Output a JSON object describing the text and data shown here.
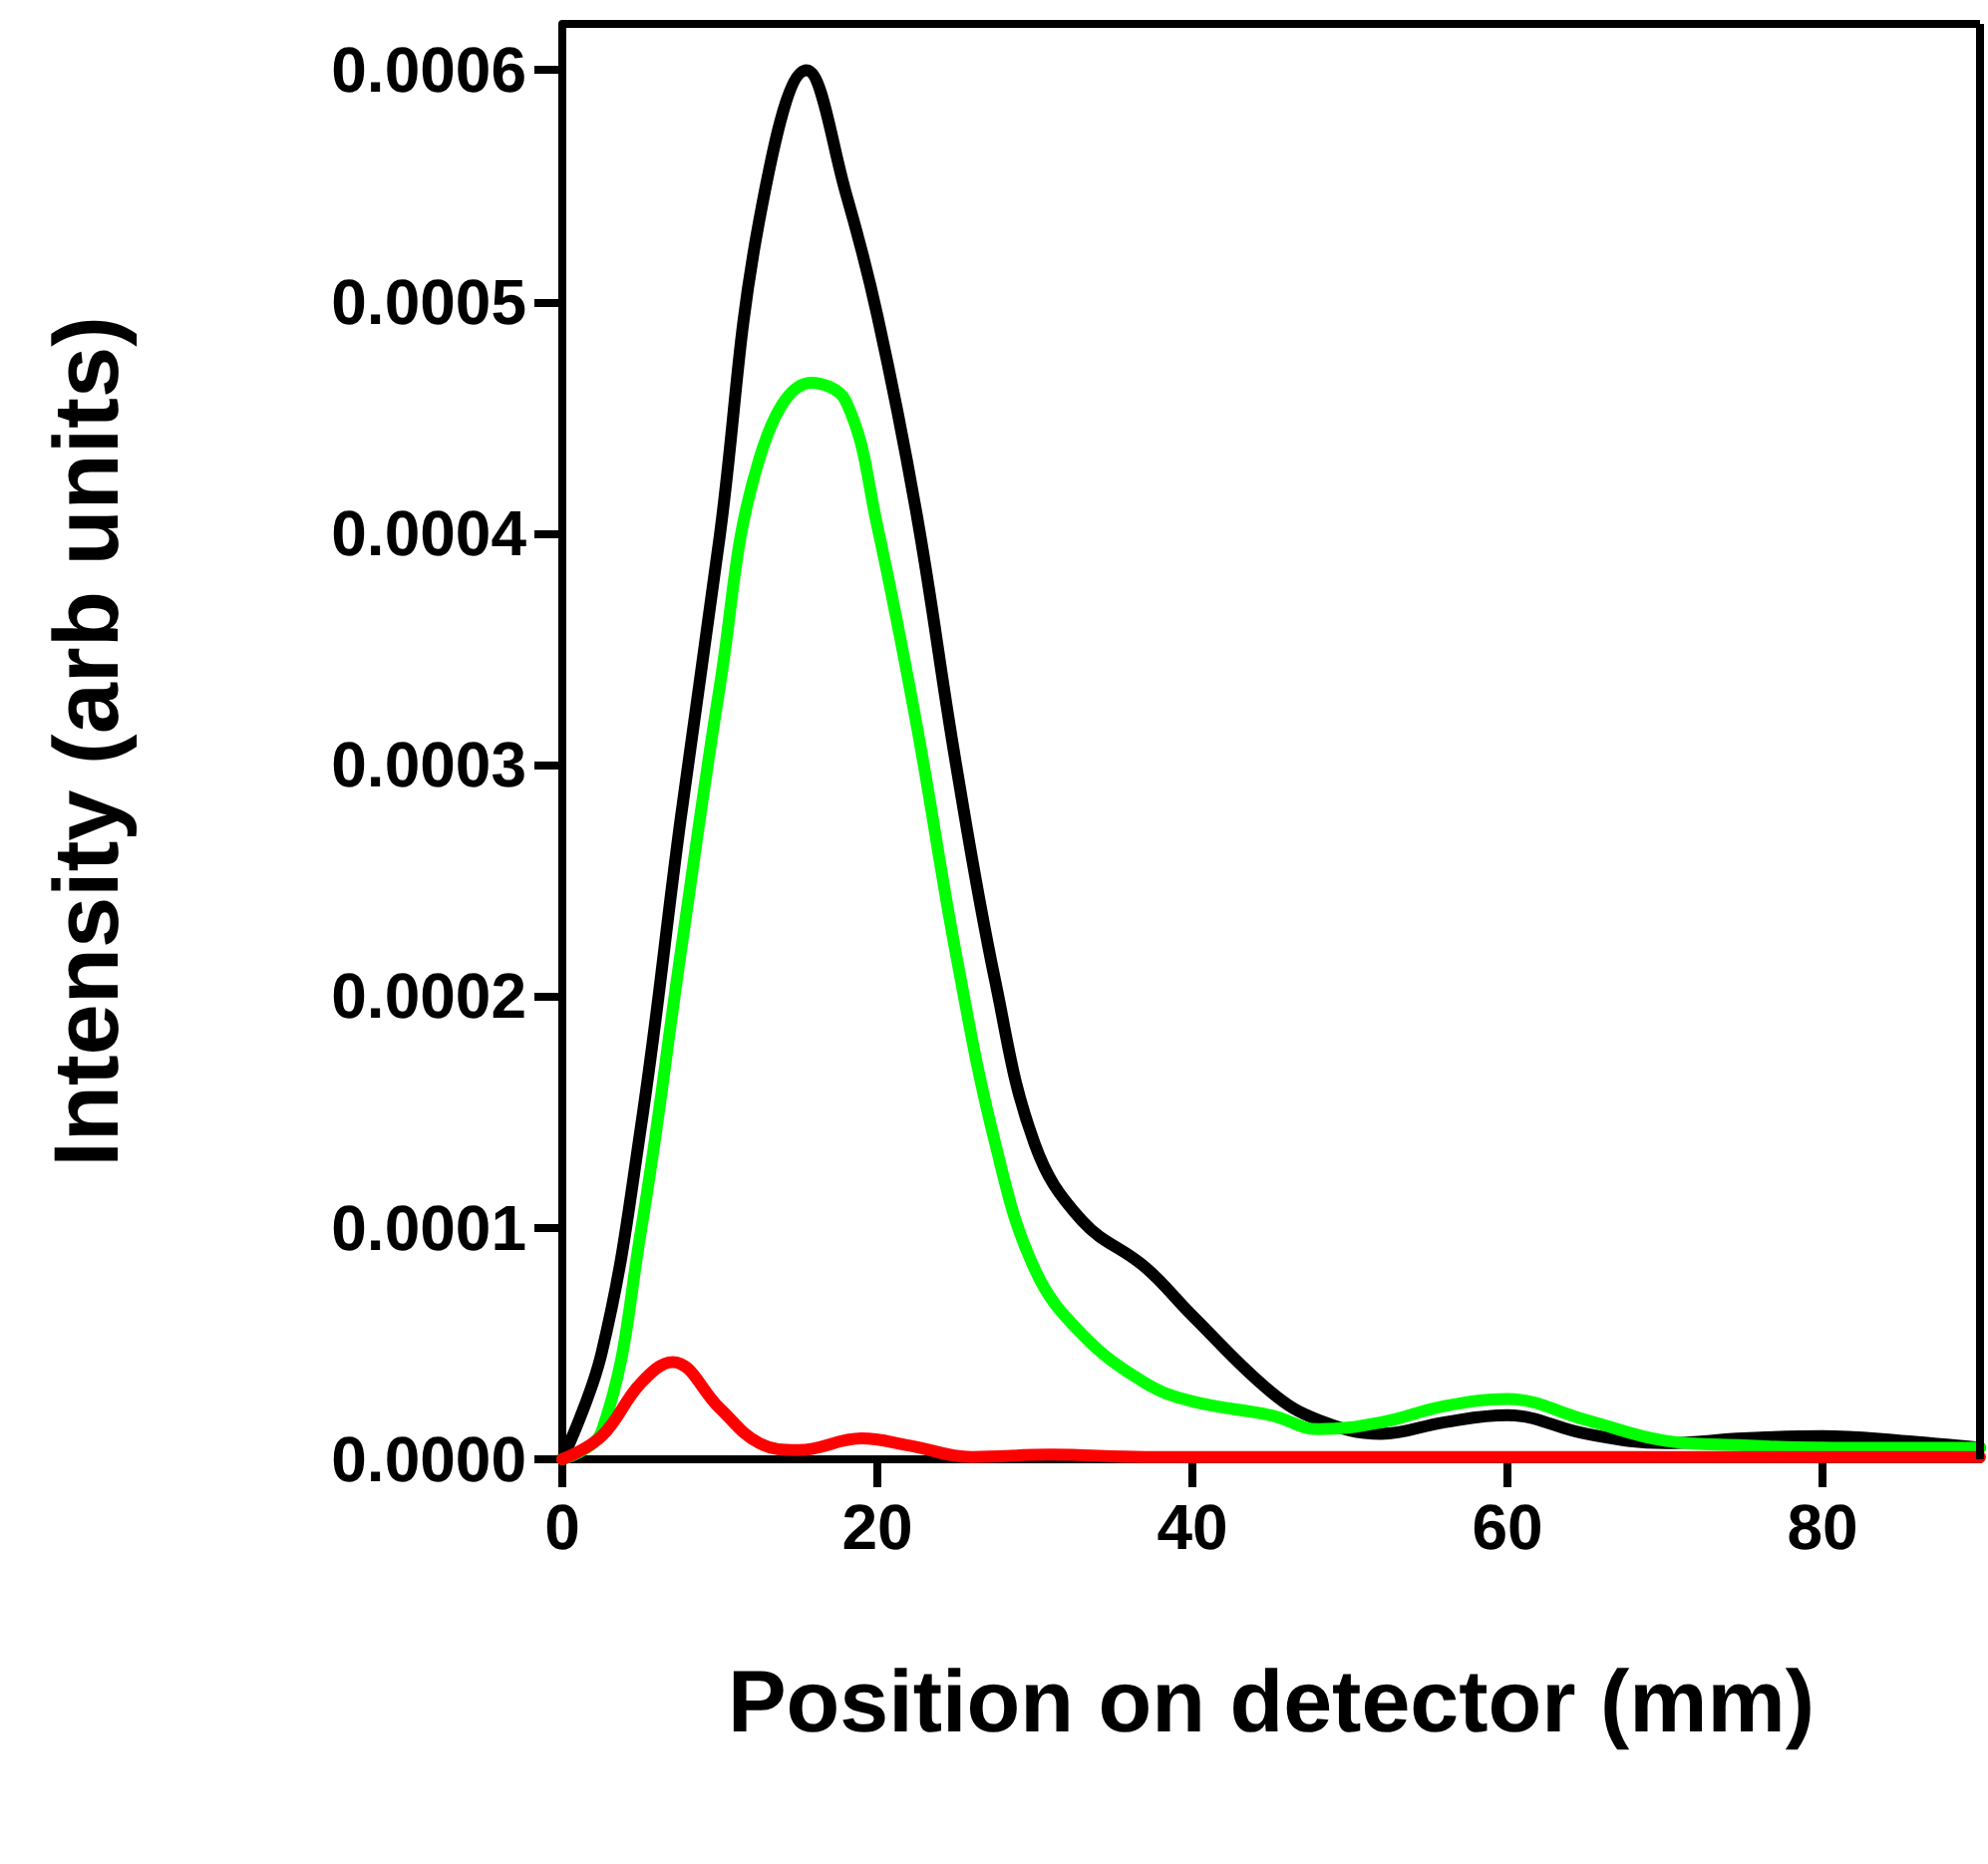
{
  "chart_data": {
    "type": "line",
    "xlabel": "Position on detector (mm)",
    "ylabel": "Intensity (arb units)",
    "xlim": [
      0,
      90
    ],
    "xticks": [
      0,
      20,
      40,
      60,
      80
    ],
    "ylim": [
      0,
      0.00062
    ],
    "yticks": [
      {
        "value": 0,
        "label": "0.0000"
      },
      {
        "value": 0.0001,
        "label": "0.0001"
      },
      {
        "value": 0.0002,
        "label": "0.0002"
      },
      {
        "value": 0.0003,
        "label": "0.0003"
      },
      {
        "value": 0.0004,
        "label": "0.0004"
      },
      {
        "value": 0.0005,
        "label": "0.0005"
      },
      {
        "value": 0.0006,
        "label": "0.0006"
      }
    ],
    "grid": false,
    "marker": "none",
    "line_style": "solid",
    "series": [
      {
        "color": "#000000",
        "x": [
          0,
          2.5,
          5,
          7.5,
          10,
          12.5,
          15.5,
          18,
          20,
          22.5,
          25,
          27.5,
          30,
          33,
          37,
          40,
          45,
          48,
          52,
          56,
          60,
          65,
          70,
          75,
          80,
          85,
          90
        ],
        "values": [
          0,
          4.6e-05,
          0.000144,
          0.000276,
          0.000399,
          0.000535,
          0.0006,
          0.000547,
          0.000494,
          0.000408,
          0.0003,
          0.000206,
          0.000136,
          0.000103,
          8.3e-05,
          6.2e-05,
          2.9e-05,
          1.7e-05,
          1.1e-05,
          1.6e-05,
          1.9e-05,
          1.1e-05,
          7e-06,
          9e-06,
          1e-05,
          8e-06,
          5e-06
        ]
      },
      {
        "color": "#00ff00",
        "x": [
          0,
          2.5,
          5,
          7.5,
          10,
          12.5,
          15.8,
          18,
          20,
          22.5,
          25,
          27.5,
          30,
          33,
          37,
          40,
          45,
          48,
          52,
          56,
          60,
          65,
          70,
          75,
          80,
          85,
          90
        ],
        "values": [
          0,
          1.2e-05,
          9.9e-05,
          0.000218,
          0.000334,
          0.000432,
          0.000465,
          0.000457,
          0.000403,
          0.000317,
          0.000218,
          0.000136,
          8.2e-05,
          5.4e-05,
          3.3e-05,
          2.5e-05,
          1.9e-05,
          1.3e-05,
          1.6e-05,
          2.3e-05,
          2.6e-05,
          1.7e-05,
          8e-06,
          6e-06,
          5e-06,
          5e-06,
          5e-06
        ]
      },
      {
        "color": "#ff0000",
        "x": [
          0,
          2.5,
          5,
          7,
          10,
          12.5,
          15,
          19,
          22,
          26,
          31,
          37,
          40,
          50,
          60,
          70,
          80,
          90
        ],
        "values": [
          0,
          1e-05,
          3.3e-05,
          4.2e-05,
          2.2e-05,
          7e-06,
          4e-06,
          9e-06,
          6e-06,
          1e-06,
          2e-06,
          1e-06,
          1e-06,
          1e-06,
          1e-06,
          1e-06,
          1e-06,
          1e-06
        ]
      }
    ]
  }
}
